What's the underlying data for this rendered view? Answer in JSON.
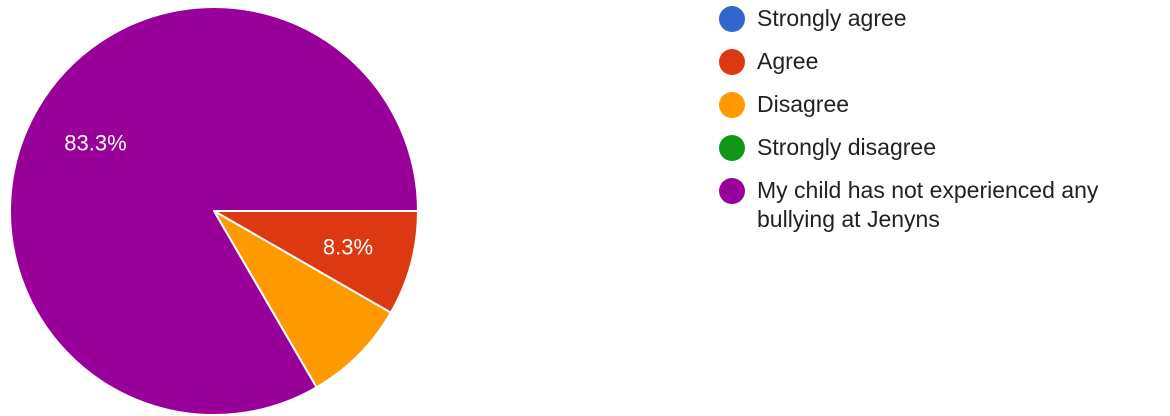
{
  "chart_data": {
    "type": "pie",
    "categories": [
      "Strongly agree",
      "Agree",
      "Disagree",
      "Strongly disagree",
      "My child has not experienced any bullying at Jenyns"
    ],
    "values": [
      0,
      8.3,
      8.3,
      0,
      83.3
    ],
    "colors": [
      "#3366cc",
      "#dc3912",
      "#ff9900",
      "#109618",
      "#990099"
    ],
    "data_labels": [
      "",
      "8.3%",
      "",
      "",
      "83.3%"
    ],
    "legend_placement": "right",
    "start_angle": "3 o'clock, clockwise"
  }
}
